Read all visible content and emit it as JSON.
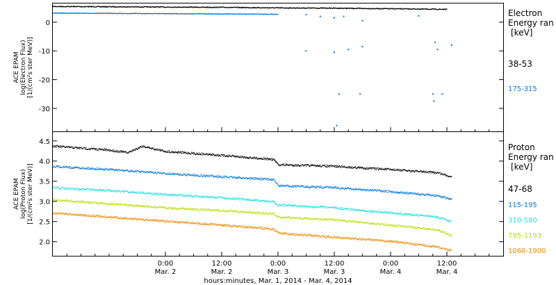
{
  "chart_data": [
    {
      "type": "scatter",
      "panel": "electron",
      "ylabel_lines": [
        "ACE EPAM",
        "log(Electron Flux)",
        "[1/(cm²s ster MeV)]"
      ],
      "legend_title_lines": [
        "Electron",
        "Energy ran",
        "[keV]"
      ],
      "ylim": [
        -38,
        6.5
      ],
      "yticks": [
        0,
        -10,
        -20,
        -30
      ],
      "ytick_labels": [
        "0",
        "-10",
        "-20",
        "-30"
      ],
      "series": [
        {
          "name": "38-53",
          "color": "#000000",
          "points": [
            [
              "2014-03-01T00:00",
              5.6
            ],
            [
              "2014-03-01T12:00",
              5.5
            ],
            [
              "2014-03-02T00:00",
              5.4
            ],
            [
              "2014-03-02T12:00",
              5.3
            ],
            [
              "2014-03-03T00:00",
              5.1
            ],
            [
              "2014-03-03T12:00",
              5.0
            ],
            [
              "2014-03-04T00:00",
              4.8
            ],
            [
              "2014-03-04T12:00",
              4.6
            ]
          ]
        },
        {
          "name": "175-315",
          "color": "#0077dd",
          "points": [
            [
              "2014-03-01T00:00",
              3.3
            ],
            [
              "2014-03-01T12:00",
              3.2
            ],
            [
              "2014-03-02T00:00",
              3.1
            ],
            [
              "2014-03-02T12:00",
              3.0
            ],
            [
              "2014-03-03T00:00",
              2.9
            ],
            [
              "2014-03-03T06:00",
              2.6
            ],
            [
              "2014-03-03T09:00",
              2.0
            ],
            [
              "2014-03-03T12:00",
              1.5
            ],
            [
              "2014-03-03T14:00",
              2.0
            ],
            [
              "2014-03-03T18:00",
              0.5
            ],
            [
              "2014-03-04T06:00",
              2.2
            ],
            [
              "2014-03-03T06:00",
              -10.0
            ],
            [
              "2014-03-03T12:00",
              -10.5
            ],
            [
              "2014-03-03T15:00",
              -9.5
            ],
            [
              "2014-03-03T18:00",
              -8.5
            ],
            [
              "2014-03-04T10:00",
              -9.5
            ],
            [
              "2014-03-04T13:00",
              -8.0
            ],
            [
              "2014-03-04T09:30",
              -7.0
            ],
            [
              "2014-03-03T13:00",
              -25.0
            ],
            [
              "2014-03-03T17:30",
              -25.0
            ],
            [
              "2014-03-04T09:00",
              -25.0
            ],
            [
              "2014-03-04T09:15",
              -27.5
            ],
            [
              "2014-03-04T11:00",
              -25.0
            ],
            [
              "2014-03-03T12:30",
              -36.0
            ]
          ]
        }
      ]
    },
    {
      "type": "scatter",
      "panel": "proton",
      "ylabel_lines": [
        "ACE EPAM",
        "log(Proton Flux)",
        "[1/(cm²s ster MeV)]"
      ],
      "legend_title_lines": [
        "Proton",
        "Energy ran",
        "[keV]"
      ],
      "ylim": [
        1.65,
        4.72
      ],
      "yticks": [
        4.5,
        4.0,
        3.5,
        3.0,
        2.5,
        2.0
      ],
      "ytick_labels": [
        "4.5",
        "4.0",
        "3.5",
        "3.0",
        "2.5",
        "2.0"
      ],
      "series": [
        {
          "name": "47-68",
          "color": "#000000",
          "points": [
            [
              "2014-03-01T00:00",
              4.38
            ],
            [
              "2014-03-01T12:00",
              4.28
            ],
            [
              "2014-03-01T16:00",
              4.22
            ],
            [
              "2014-03-01T19:00",
              4.38
            ],
            [
              "2014-03-02T00:00",
              4.25
            ],
            [
              "2014-03-02T12:00",
              4.15
            ],
            [
              "2014-03-02T23:00",
              4.05
            ],
            [
              "2014-03-03T00:00",
              3.92
            ],
            [
              "2014-03-03T12:00",
              3.88
            ],
            [
              "2014-03-04T00:00",
              3.8
            ],
            [
              "2014-03-04T10:00",
              3.72
            ],
            [
              "2014-03-04T13:00",
              3.62
            ]
          ]
        },
        {
          "name": "115-195",
          "color": "#0077dd",
          "points": [
            [
              "2014-03-01T00:00",
              3.88
            ],
            [
              "2014-03-01T12:00",
              3.8
            ],
            [
              "2014-03-02T00:00",
              3.7
            ],
            [
              "2014-03-02T12:00",
              3.62
            ],
            [
              "2014-03-02T23:00",
              3.55
            ],
            [
              "2014-03-03T00:00",
              3.4
            ],
            [
              "2014-03-03T12:00",
              3.35
            ],
            [
              "2014-03-04T00:00",
              3.25
            ],
            [
              "2014-03-04T10:00",
              3.15
            ],
            [
              "2014-03-04T13:00",
              3.05
            ]
          ]
        },
        {
          "name": "310-580",
          "color": "#22dddd",
          "points": [
            [
              "2014-03-01T00:00",
              3.35
            ],
            [
              "2014-03-01T12:00",
              3.28
            ],
            [
              "2014-03-02T00:00",
              3.18
            ],
            [
              "2014-03-02T12:00",
              3.1
            ],
            [
              "2014-03-02T23:00",
              3.0
            ],
            [
              "2014-03-03T00:00",
              2.92
            ],
            [
              "2014-03-03T12:00",
              2.85
            ],
            [
              "2014-03-04T00:00",
              2.72
            ],
            [
              "2014-03-04T10:00",
              2.62
            ],
            [
              "2014-03-04T13:00",
              2.5
            ]
          ]
        },
        {
          "name": "795-1193",
          "color": "#bbdd00",
          "points": [
            [
              "2014-03-01T00:00",
              3.05
            ],
            [
              "2014-03-01T12:00",
              2.95
            ],
            [
              "2014-03-02T00:00",
              2.85
            ],
            [
              "2014-03-02T12:00",
              2.78
            ],
            [
              "2014-03-02T23:00",
              2.7
            ],
            [
              "2014-03-03T00:00",
              2.62
            ],
            [
              "2014-03-03T12:00",
              2.55
            ],
            [
              "2014-03-04T00:00",
              2.42
            ],
            [
              "2014-03-04T10:00",
              2.3
            ],
            [
              "2014-03-04T13:00",
              2.15
            ]
          ]
        },
        {
          "name": "1060-1900",
          "color": "#ee8800",
          "points": [
            [
              "2014-03-01T00:00",
              2.72
            ],
            [
              "2014-03-01T12:00",
              2.62
            ],
            [
              "2014-03-02T00:00",
              2.52
            ],
            [
              "2014-03-02T12:00",
              2.42
            ],
            [
              "2014-03-02T23:00",
              2.32
            ],
            [
              "2014-03-03T00:00",
              2.22
            ],
            [
              "2014-03-03T12:00",
              2.12
            ],
            [
              "2014-03-04T00:00",
              2.02
            ],
            [
              "2014-03-04T10:00",
              1.88
            ],
            [
              "2014-03-04T13:00",
              1.78
            ]
          ]
        }
      ]
    }
  ],
  "x_axis": {
    "xlim": [
      "2014-03-01T00:00",
      "2014-03-05T00:00"
    ],
    "ticks": [
      {
        "at": "2014-03-02T00:00",
        "time": "0:00",
        "date": "Mar. 2"
      },
      {
        "at": "2014-03-02T12:00",
        "time": "12:00",
        "date": "Mar. 2"
      },
      {
        "at": "2014-03-03T00:00",
        "time": "0:00",
        "date": "Mar. 3"
      },
      {
        "at": "2014-03-03T12:00",
        "time": "12:00",
        "date": "Mar. 3"
      },
      {
        "at": "2014-03-04T00:00",
        "time": "0:00",
        "date": "Mar. 4"
      },
      {
        "at": "2014-03-04T12:00",
        "time": "12:00",
        "date": "Mar. 4"
      }
    ],
    "label": "hours:minutes, Mar.  1, 2014 - Mar.  4, 2014"
  }
}
